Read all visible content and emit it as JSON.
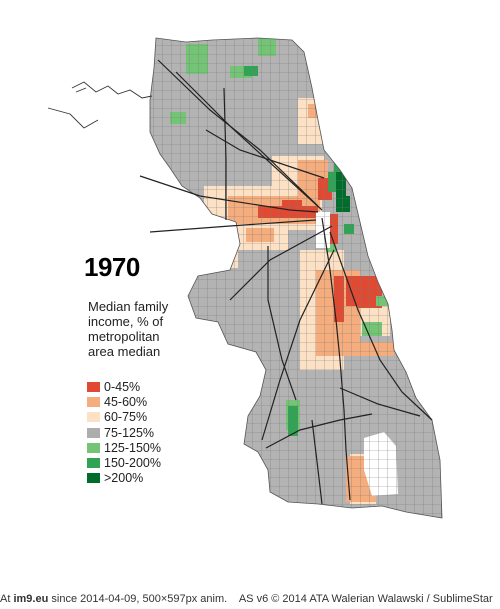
{
  "map": {
    "year": "1970",
    "legend_title_lines": [
      "Median family",
      "income, % of",
      "metropolitan",
      "area median"
    ],
    "legend": [
      {
        "label": "0-45%",
        "color": "#e04a33"
      },
      {
        "label": "45-60%",
        "color": "#f5ad7d"
      },
      {
        "label": "60-75%",
        "color": "#fde1c4"
      },
      {
        "label": "75-125%",
        "color": "#adadad"
      },
      {
        "label": "125-150%",
        "color": "#74c476"
      },
      {
        "label": "150-200%",
        "color": "#31a354"
      },
      {
        "label": ">200%",
        "color": "#006d2c"
      }
    ]
  },
  "footer": {
    "prefix": "At",
    "site": "im9.eu",
    "since": "since 2014-04-09, 500×597px anim.",
    "version": "AS v6 © 2014 ATA Walerian Walawski / SublimeStar"
  }
}
